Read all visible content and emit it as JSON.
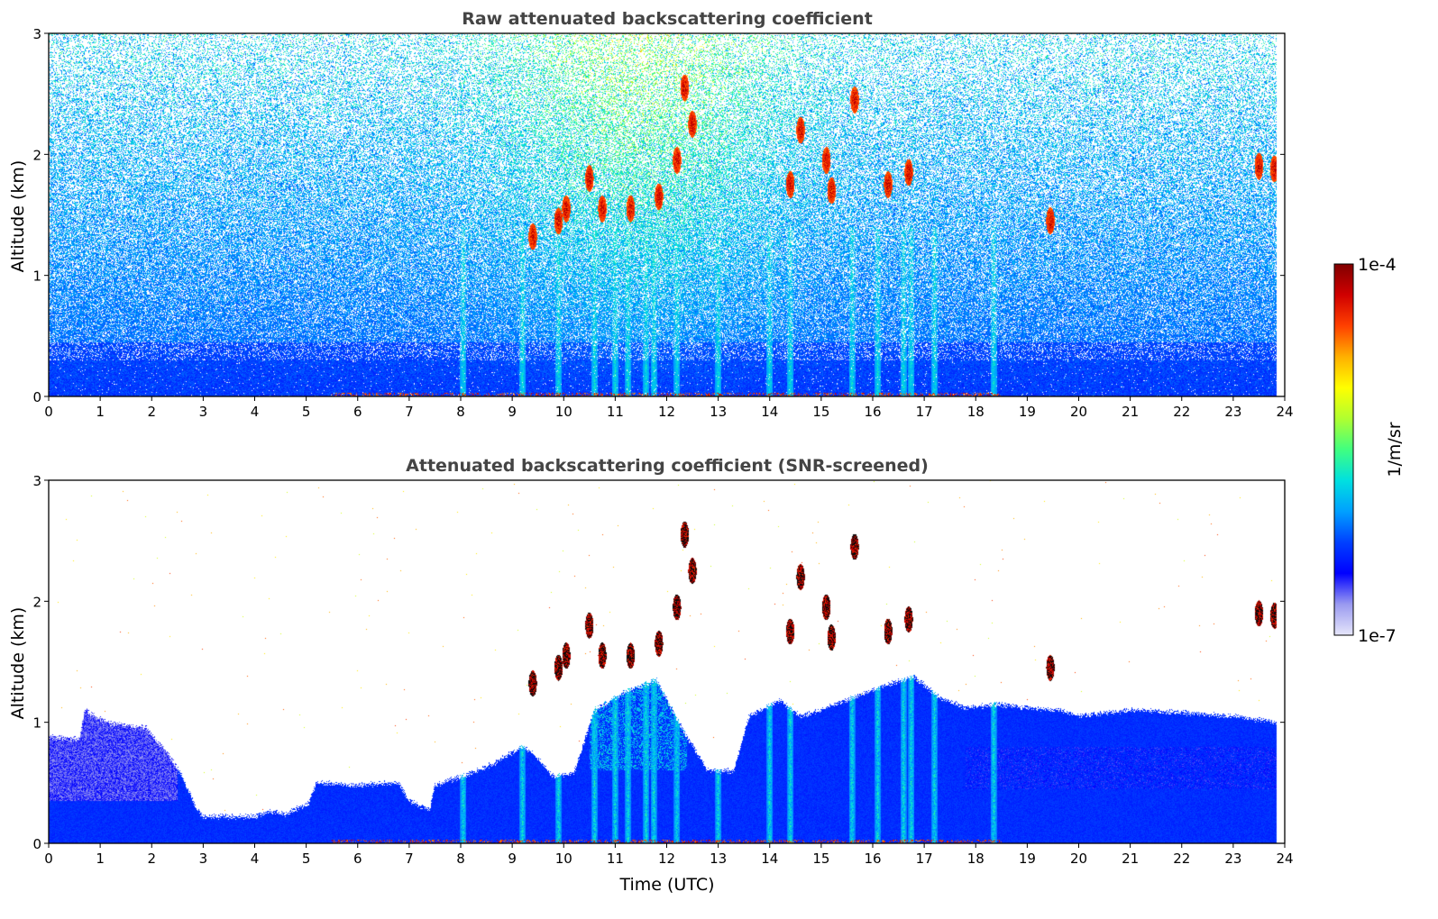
{
  "colormap": {
    "stops": [
      "#e6e6fa",
      "#9a9af0",
      "#0000ff",
      "#0040ff",
      "#00a0ff",
      "#00e0e0",
      "#40ff80",
      "#b0ff30",
      "#ffff00",
      "#ffb000",
      "#ff4000",
      "#d00000",
      "#800000"
    ],
    "ticks": [
      "1e-4",
      "1e-7"
    ],
    "label": "1/m/sr"
  },
  "chart_data": [
    {
      "type": "heatmap",
      "title": "Raw attenuated backscattering coefficient",
      "xlabel": "",
      "ylabel": "Altitude (km)",
      "xlim": [
        0,
        24
      ],
      "ylim": [
        0,
        3
      ],
      "xticks": [
        "0",
        "1",
        "2",
        "3",
        "4",
        "5",
        "6",
        "7",
        "8",
        "9",
        "10",
        "11",
        "12",
        "13",
        "14",
        "15",
        "16",
        "17",
        "18",
        "19",
        "20",
        "21",
        "22",
        "23",
        "24"
      ],
      "yticks": [
        "0",
        "1",
        "2",
        "3"
      ],
      "color_scale": "log",
      "clim": [
        1e-07,
        0.0001
      ],
      "features": {
        "noise_fraction": 0.45,
        "aerosol_layer_top_km": 0.45,
        "elevated_clouds": [
          {
            "t": 9.4,
            "z": 1.32
          },
          {
            "t": 9.9,
            "z": 1.45
          },
          {
            "t": 10.05,
            "z": 1.55
          },
          {
            "t": 10.5,
            "z": 1.8
          },
          {
            "t": 10.75,
            "z": 1.55
          },
          {
            "t": 11.3,
            "z": 1.55
          },
          {
            "t": 11.85,
            "z": 1.65
          },
          {
            "t": 12.2,
            "z": 1.95
          },
          {
            "t": 12.35,
            "z": 2.55
          },
          {
            "t": 12.5,
            "z": 2.25
          },
          {
            "t": 14.4,
            "z": 1.75
          },
          {
            "t": 14.6,
            "z": 2.2
          },
          {
            "t": 15.1,
            "z": 1.95
          },
          {
            "t": 15.2,
            "z": 1.7
          },
          {
            "t": 15.65,
            "z": 2.45
          },
          {
            "t": 16.3,
            "z": 1.75
          },
          {
            "t": 16.7,
            "z": 1.85
          },
          {
            "t": 19.45,
            "z": 1.45
          },
          {
            "t": 23.5,
            "z": 1.9
          },
          {
            "t": 23.8,
            "z": 1.88
          }
        ],
        "vertical_streaks": [
          8.05,
          9.2,
          9.9,
          10.6,
          11.0,
          11.25,
          11.6,
          11.75,
          12.2,
          13.0,
          14.0,
          14.4,
          15.6,
          16.1,
          16.6,
          16.75,
          17.2,
          18.35
        ]
      }
    },
    {
      "type": "heatmap",
      "title": "Attenuated backscattering coefficient (SNR-screened)",
      "xlabel": "Time (UTC)",
      "ylabel": "Altitude (km)",
      "xlim": [
        0,
        24
      ],
      "ylim": [
        0,
        3
      ],
      "xticks": [
        "0",
        "1",
        "2",
        "3",
        "4",
        "5",
        "6",
        "7",
        "8",
        "9",
        "10",
        "11",
        "12",
        "13",
        "14",
        "15",
        "16",
        "17",
        "18",
        "19",
        "20",
        "21",
        "22",
        "23",
        "24"
      ],
      "yticks": [
        "0",
        "1",
        "2",
        "3"
      ],
      "color_scale": "log",
      "clim": [
        1e-07,
        0.0001
      ],
      "boundary_layer_top_km": [
        [
          0,
          0.88
        ],
        [
          0.6,
          0.86
        ],
        [
          0.7,
          1.1
        ],
        [
          1.1,
          1.0
        ],
        [
          1.9,
          0.95
        ],
        [
          2.35,
          0.72
        ],
        [
          2.6,
          0.55
        ],
        [
          2.85,
          0.3
        ],
        [
          3.0,
          0.22
        ],
        [
          4.0,
          0.22
        ],
        [
          4.3,
          0.27
        ],
        [
          4.6,
          0.24
        ],
        [
          5.05,
          0.33
        ],
        [
          5.2,
          0.5
        ],
        [
          6.0,
          0.48
        ],
        [
          6.8,
          0.5
        ],
        [
          7.0,
          0.35
        ],
        [
          7.4,
          0.28
        ],
        [
          7.5,
          0.48
        ],
        [
          8.0,
          0.55
        ],
        [
          8.6,
          0.65
        ],
        [
          9.2,
          0.8
        ],
        [
          9.4,
          0.75
        ],
        [
          9.8,
          0.55
        ],
        [
          10.2,
          0.58
        ],
        [
          10.6,
          1.1
        ],
        [
          11.2,
          1.25
        ],
        [
          11.8,
          1.35
        ],
        [
          12.3,
          0.95
        ],
        [
          12.8,
          0.6
        ],
        [
          13.3,
          0.6
        ],
        [
          13.6,
          1.05
        ],
        [
          14.2,
          1.18
        ],
        [
          14.6,
          1.05
        ],
        [
          15.0,
          1.1
        ],
        [
          15.6,
          1.2
        ],
        [
          16.2,
          1.3
        ],
        [
          16.8,
          1.38
        ],
        [
          17.3,
          1.2
        ],
        [
          17.8,
          1.12
        ],
        [
          18.4,
          1.15
        ],
        [
          19.0,
          1.12
        ],
        [
          19.6,
          1.1
        ],
        [
          20.0,
          1.05
        ],
        [
          21.0,
          1.1
        ],
        [
          22.0,
          1.08
        ],
        [
          23.0,
          1.05
        ],
        [
          23.85,
          1.0
        ]
      ],
      "features": {
        "elevated_clouds": [
          {
            "t": 9.4,
            "z": 1.32
          },
          {
            "t": 9.9,
            "z": 1.45
          },
          {
            "t": 10.05,
            "z": 1.55
          },
          {
            "t": 10.5,
            "z": 1.8
          },
          {
            "t": 10.75,
            "z": 1.55
          },
          {
            "t": 11.3,
            "z": 1.55
          },
          {
            "t": 11.85,
            "z": 1.65
          },
          {
            "t": 12.2,
            "z": 1.95
          },
          {
            "t": 12.35,
            "z": 2.55
          },
          {
            "t": 12.5,
            "z": 2.25
          },
          {
            "t": 14.4,
            "z": 1.75
          },
          {
            "t": 14.6,
            "z": 2.2
          },
          {
            "t": 15.1,
            "z": 1.95
          },
          {
            "t": 15.2,
            "z": 1.7
          },
          {
            "t": 15.65,
            "z": 2.45
          },
          {
            "t": 16.3,
            "z": 1.75
          },
          {
            "t": 16.7,
            "z": 1.85
          },
          {
            "t": 19.45,
            "z": 1.45
          },
          {
            "t": 23.5,
            "z": 1.9
          },
          {
            "t": 23.8,
            "z": 1.88
          }
        ],
        "vertical_streaks": [
          8.05,
          9.2,
          9.9,
          10.6,
          11.0,
          11.25,
          11.6,
          11.75,
          12.2,
          13.0,
          14.0,
          14.4,
          15.6,
          16.1,
          16.6,
          16.75,
          17.2,
          18.35
        ]
      }
    }
  ]
}
